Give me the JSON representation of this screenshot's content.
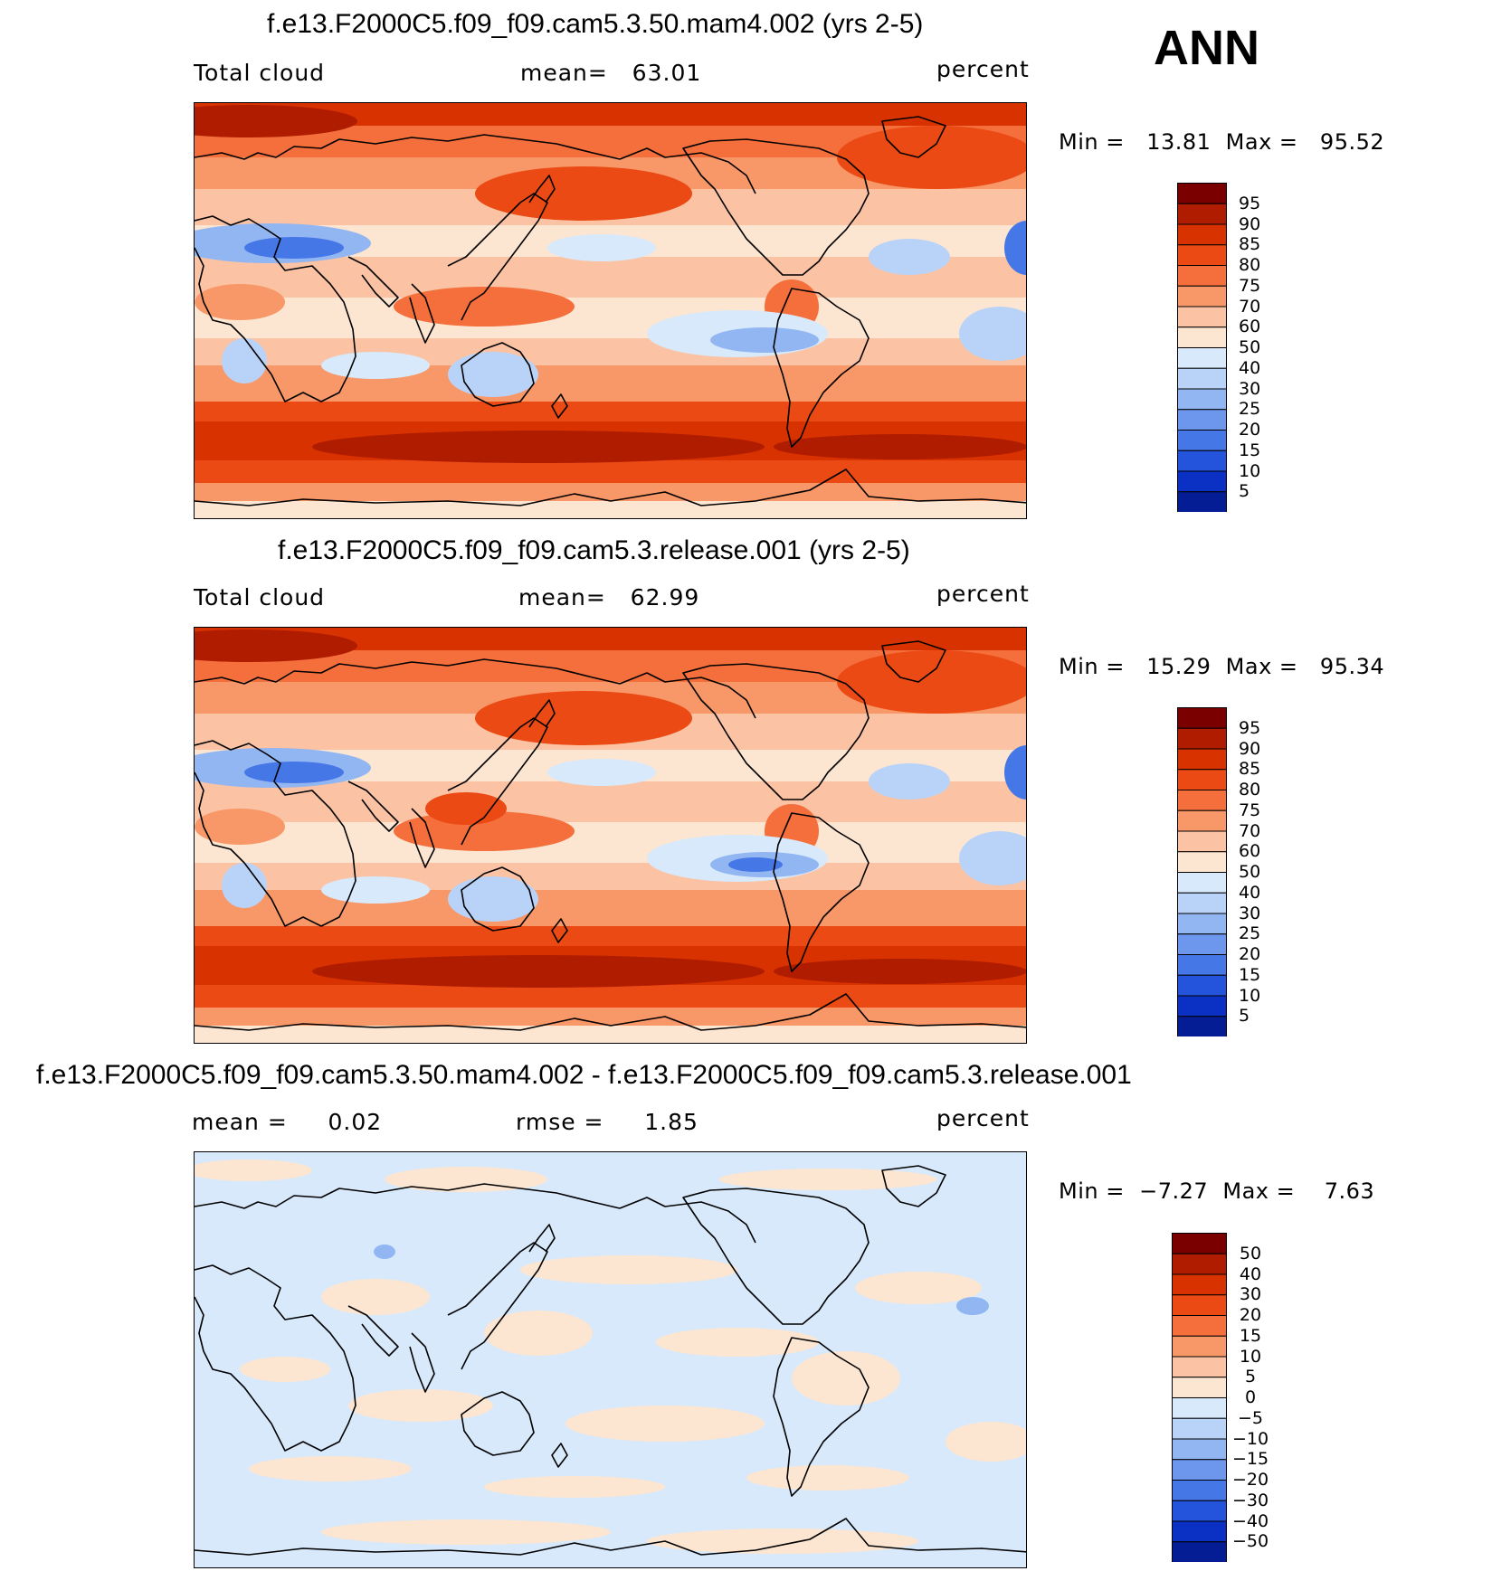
{
  "season": "ANN",
  "panels": [
    {
      "title": "f.e13.F2000C5.f09_f09.cam5.3.50.mam4.002 (yrs 2-5)",
      "left_label": "Total cloud",
      "mid_label": "mean=   63.01",
      "right_label": "percent",
      "minmax": "Min =   13.81  Max =   95.52",
      "style": "abs"
    },
    {
      "title": "f.e13.F2000C5.f09_f09.cam5.3.release.001 (yrs 2-5)",
      "left_label": "Total cloud",
      "mid_label": "mean=   62.99",
      "right_label": "percent",
      "minmax": "Min =   15.29  Max =   95.34",
      "style": "abs"
    },
    {
      "title": "f.e13.F2000C5.f09_f09.cam5.3.50.mam4.002 - f.e13.F2000C5.f09_f09.cam5.3.release.001",
      "left_label": "mean =     0.02",
      "mid_label": "rmse =     1.85",
      "right_label": "percent",
      "minmax": "Min =  −7.27  Max =    7.63",
      "style": "diff"
    }
  ],
  "colorbars": {
    "abs": {
      "labels": [
        "95",
        "90",
        "85",
        "80",
        "75",
        "70",
        "60",
        "50",
        "40",
        "30",
        "25",
        "20",
        "15",
        "10",
        "5"
      ],
      "colors": [
        "#7a0000",
        "#b01c00",
        "#d83200",
        "#eb4a14",
        "#f46f3c",
        "#f89768",
        "#fbc3a3",
        "#fde6d1",
        "#d7e9fb",
        "#b9d3f8",
        "#92b6f2",
        "#6c97ec",
        "#4677e6",
        "#2454dc",
        "#0a30c4",
        "#041c94"
      ]
    },
    "diff": {
      "labels": [
        "50",
        "40",
        "30",
        "20",
        "15",
        "10",
        "5",
        "0",
        "−5",
        "−10",
        "−15",
        "−20",
        "−30",
        "−40",
        "−50"
      ],
      "colors": [
        "#7a0000",
        "#b01c00",
        "#d83200",
        "#eb4a14",
        "#f46f3c",
        "#f89768",
        "#fbc3a3",
        "#fde6d1",
        "#d7e9fb",
        "#b9d3f8",
        "#92b6f2",
        "#6c97ec",
        "#4677e6",
        "#2454dc",
        "#0a30c4",
        "#041c94"
      ]
    }
  }
}
